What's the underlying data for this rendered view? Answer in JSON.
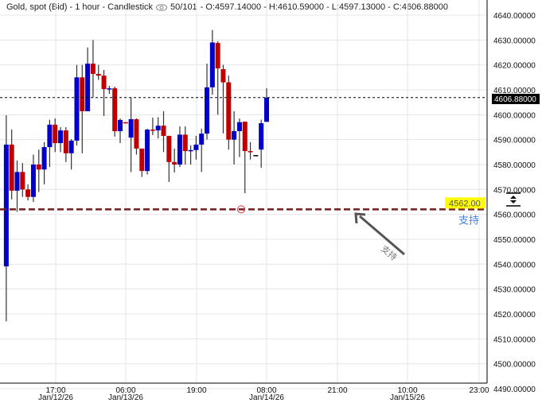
{
  "header": {
    "symbol": "Gold, spot (Bid) - 1 hour - Candlestick",
    "eye_icon": "eye-icon",
    "counter": "50/101",
    "ohlc": "- O:4597.14000 - H:4610.59000 - L:4597.13000 - C:4606.88000"
  },
  "colors": {
    "up": "#0000c8",
    "down": "#c00000",
    "wick": "#333333",
    "support_line": "#7a1a1a",
    "label_highlight": "#ffff00",
    "annotation_text": "#3f7fe0",
    "arrow": "#555555"
  },
  "chart_data": {
    "type": "candlestick",
    "title": "Gold, spot (Bid) - 1 hour - Candlestick",
    "ylim": [
      4490,
      4645
    ],
    "yticks": [
      "4640.00000",
      "4630.00000",
      "4620.00000",
      "4610.00000",
      "4600.00000",
      "4590.00000",
      "4580.00000",
      "4570.00000",
      "4560.00000",
      "4550.00000",
      "4540.00000",
      "4530.00000",
      "4520.00000",
      "4510.00000",
      "4500.00000",
      "4490.00000"
    ],
    "xticks": [
      {
        "time": "17:00",
        "date": "Jan/12/26"
      },
      {
        "time": "06:00",
        "date": "Jan/13/26"
      },
      {
        "time": "19:00",
        "date": ""
      },
      {
        "time": "08:00",
        "date": "Jan/14/26"
      },
      {
        "time": "21:00",
        "date": ""
      },
      {
        "time": "10:00",
        "date": "Jan/15/26"
      },
      {
        "time": "23:00",
        "date": ""
      }
    ],
    "grid": true,
    "first_candle_time": "Jan/12/26 08:00",
    "candles": [
      [
        4539.1,
        4599.8,
        4517.0,
        4588.0
      ],
      [
        4588.0,
        4594.0,
        4566.0,
        4569.5
      ],
      [
        4569.5,
        4581.6,
        4561.0,
        4577.0
      ],
      [
        4577.0,
        4580.6,
        4567.0,
        4570.0
      ],
      [
        4570.0,
        4572.0,
        4565.6,
        4567.0
      ],
      [
        4567.0,
        4584.0,
        4565.0,
        4580.0
      ],
      [
        4580.0,
        4586.0,
        4569.0,
        4578.0
      ],
      [
        4578.0,
        4589.0,
        4572.0,
        4587.0
      ],
      [
        4587.0,
        4598.0,
        4579.0,
        4596.0
      ],
      [
        4596.0,
        4598.5,
        4585.0,
        4588.6
      ],
      [
        4588.6,
        4595.0,
        4585.0,
        4593.7
      ],
      [
        4593.7,
        4595.0,
        4581.0,
        4584.5
      ],
      [
        4584.5,
        4590.2,
        4578.0,
        4589.6
      ],
      [
        4589.6,
        4620.0,
        4587.6,
        4615.0
      ],
      [
        4615.0,
        4620.0,
        4584.5,
        4601.4
      ],
      [
        4601.4,
        4627.0,
        4601.4,
        4620.5
      ],
      [
        4620.5,
        4630.0,
        4607.0,
        4616.4
      ],
      [
        4616.4,
        4620.0,
        4614.0,
        4615.7
      ],
      [
        4615.7,
        4618.0,
        4599.5,
        4610.3
      ],
      [
        4610.3,
        4611.6,
        4608.4,
        4610.6
      ],
      [
        4610.6,
        4611.3,
        4591.2,
        4593.4
      ],
      [
        4593.4,
        4598.5,
        4588.6,
        4597.9
      ],
      [
        4597.0,
        4597.0,
        4596.5,
        4596.5
      ],
      [
        4590.8,
        4607.0,
        4577.0,
        4598.2
      ],
      [
        4598.2,
        4598.5,
        4584.0,
        4586.4
      ],
      [
        4586.4,
        4586.4,
        4575.0,
        4577.4
      ],
      [
        4577.4,
        4594.4,
        4576.0,
        4594.0
      ],
      [
        4594.0,
        4598.8,
        4591.8,
        4593.7
      ],
      [
        4593.7,
        4599.0,
        4590.5,
        4595.6
      ],
      [
        4595.6,
        4601.4,
        4585.0,
        4591.5
      ],
      [
        4591.5,
        4591.5,
        4573.0,
        4581.0
      ],
      [
        4581.0,
        4586.4,
        4576.8,
        4580.0
      ],
      [
        4580.0,
        4595.3,
        4579.0,
        4592.0
      ],
      [
        4592.0,
        4595.3,
        4580.0,
        4585.4
      ],
      [
        4585.4,
        4587.7,
        4580.0,
        4585.8
      ],
      [
        4585.8,
        4591.5,
        4582.0,
        4588.0
      ],
      [
        4588.0,
        4594.4,
        4577.0,
        4592.4
      ],
      [
        4592.4,
        4620.5,
        4590.0,
        4611.0
      ],
      [
        4611.0,
        4634.0,
        4608.0,
        4629.0
      ],
      [
        4628.8,
        4629.5,
        4600.0,
        4618.6
      ],
      [
        4618.3,
        4620.0,
        4592.5,
        4613.0
      ],
      [
        4613.0,
        4615.7,
        4586.0,
        4590.0
      ],
      [
        4590.0,
        4601.4,
        4580.0,
        4593.4
      ],
      [
        4593.4,
        4598.5,
        4583.0,
        4597.0
      ],
      [
        4597.2,
        4597.2,
        4568.5,
        4585.4
      ],
      [
        4585.4,
        4589.0,
        4582.0,
        4585.0
      ],
      [
        4583.8,
        4583.8,
        4583.8,
        4583.8
      ],
      [
        4586.0,
        4598.0,
        4578.7,
        4596.6
      ],
      [
        4597.14,
        4610.59,
        4597.13,
        4606.88
      ]
    ],
    "current_price": 4606.88,
    "current_price_label": "4606.88000",
    "support": {
      "price": 4562.0,
      "label": "4562.00",
      "text": "支持"
    },
    "arrow_annotation": "支持"
  }
}
